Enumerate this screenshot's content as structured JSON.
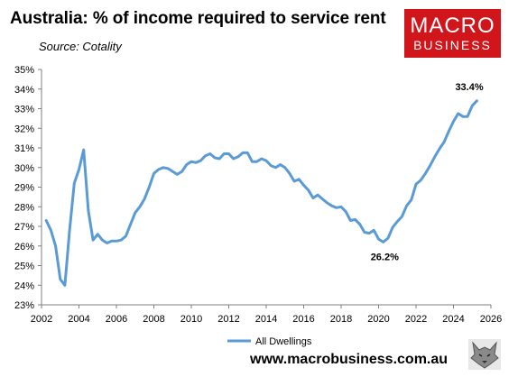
{
  "header": {
    "title": "Australia: % of income required to service rent",
    "source": "Source: Cotality"
  },
  "logo": {
    "line1": "MACRO",
    "line2": "BUSINESS",
    "color": "#d0161b"
  },
  "footer": {
    "website": "www.macrobusiness.com.au",
    "mascot_icon": "wolf-head-icon"
  },
  "chart_data": {
    "type": "line",
    "title": "Australia: % of income required to service rent",
    "xlabel": "",
    "ylabel": "",
    "xlim": [
      2002,
      2026
    ],
    "ylim": [
      23,
      35
    ],
    "y_unit": "%",
    "x_ticks": [
      2002,
      2004,
      2006,
      2008,
      2010,
      2012,
      2014,
      2016,
      2018,
      2020,
      2022,
      2024,
      2026
    ],
    "x_tick_labels": [
      "2002",
      "2004",
      "2006",
      "2008",
      "2010",
      "2012",
      "2014",
      "2016",
      "2018",
      "2020",
      "2022",
      "2024",
      "2026"
    ],
    "y_ticks": [
      23,
      24,
      25,
      26,
      27,
      28,
      29,
      30,
      31,
      32,
      33,
      34,
      35
    ],
    "y_tick_labels": [
      "23%",
      "24%",
      "25%",
      "26%",
      "27%",
      "28%",
      "29%",
      "30%",
      "31%",
      "32%",
      "33%",
      "34%",
      "35%"
    ],
    "grid": false,
    "legend_position": "bottom-left",
    "series": [
      {
        "name": "All Dwellings",
        "color": "#5b9bd5",
        "x": [
          2002.25,
          2002.5,
          2002.75,
          2003.0,
          2003.25,
          2003.5,
          2003.75,
          2004.0,
          2004.25,
          2004.5,
          2004.75,
          2005.0,
          2005.25,
          2005.5,
          2005.75,
          2006.0,
          2006.25,
          2006.5,
          2006.75,
          2007.0,
          2007.25,
          2007.5,
          2007.75,
          2008.0,
          2008.25,
          2008.5,
          2008.75,
          2009.0,
          2009.25,
          2009.5,
          2009.75,
          2010.0,
          2010.25,
          2010.5,
          2010.75,
          2011.0,
          2011.25,
          2011.5,
          2011.75,
          2012.0,
          2012.25,
          2012.5,
          2012.75,
          2013.0,
          2013.25,
          2013.5,
          2013.75,
          2014.0,
          2014.25,
          2014.5,
          2014.75,
          2015.0,
          2015.25,
          2015.5,
          2015.75,
          2016.0,
          2016.25,
          2016.5,
          2016.75,
          2017.0,
          2017.25,
          2017.5,
          2017.75,
          2018.0,
          2018.25,
          2018.5,
          2018.75,
          2019.0,
          2019.25,
          2019.5,
          2019.75,
          2020.0,
          2020.25,
          2020.5,
          2020.75,
          2021.0,
          2021.25,
          2021.5,
          2021.75,
          2022.0,
          2022.25,
          2022.5,
          2022.75,
          2023.0,
          2023.25,
          2023.5,
          2023.75,
          2024.0,
          2024.25,
          2024.5,
          2024.75,
          2025.0,
          2025.25
        ],
        "values": [
          27.3,
          26.8,
          26.0,
          24.3,
          24.0,
          26.8,
          29.2,
          29.9,
          30.9,
          27.8,
          26.3,
          26.6,
          26.3,
          26.15,
          26.25,
          26.25,
          26.3,
          26.5,
          27.1,
          27.7,
          28.0,
          28.4,
          29.0,
          29.7,
          29.9,
          30.0,
          29.95,
          29.8,
          29.65,
          29.8,
          30.15,
          30.3,
          30.25,
          30.35,
          30.6,
          30.7,
          30.5,
          30.45,
          30.7,
          30.7,
          30.45,
          30.55,
          30.75,
          30.75,
          30.3,
          30.3,
          30.45,
          30.35,
          30.1,
          30.0,
          30.15,
          30.0,
          29.7,
          29.3,
          29.4,
          29.1,
          28.85,
          28.45,
          28.6,
          28.4,
          28.2,
          28.05,
          27.95,
          28.0,
          27.75,
          27.3,
          27.35,
          27.1,
          26.7,
          26.65,
          26.8,
          26.35,
          26.2,
          26.4,
          26.95,
          27.25,
          27.5,
          28.05,
          28.35,
          29.15,
          29.35,
          29.7,
          30.1,
          30.55,
          30.95,
          31.3,
          31.85,
          32.35,
          32.75,
          32.6,
          32.6,
          33.15,
          33.4
        ]
      }
    ],
    "annotations": [
      {
        "text": "33.4%",
        "x": 2025.25,
        "y": 33.4
      },
      {
        "text": "26.2%",
        "x": 2020.25,
        "y": 26.2
      }
    ]
  }
}
